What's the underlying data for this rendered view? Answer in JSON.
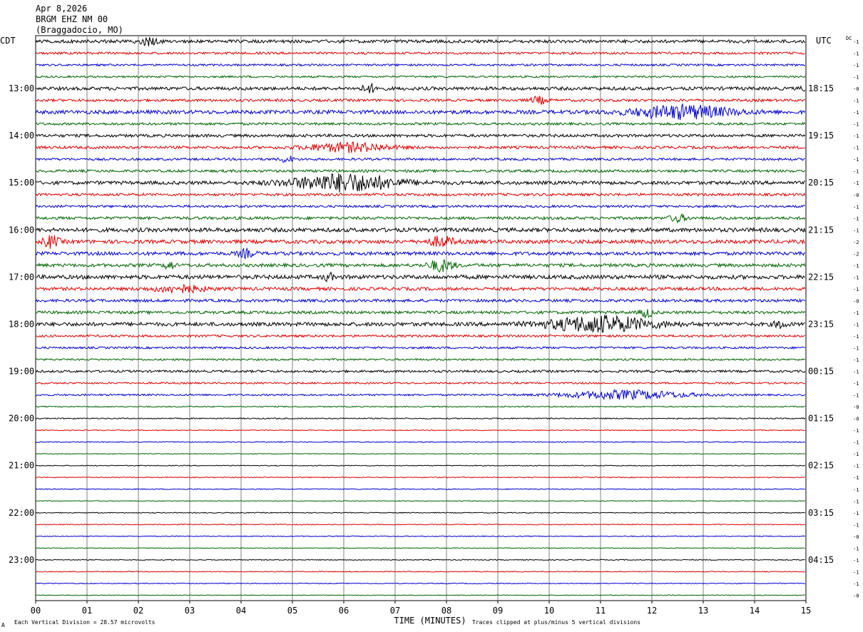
{
  "header": {
    "date": "Apr 8,2026",
    "station": "BRGM EHZ NM 00",
    "location": "(Braggadocio, MO)"
  },
  "labels": {
    "left_tz": "CDT",
    "right_tz": "UTC",
    "dc": "DC"
  },
  "footer": {
    "scale_note": "Each Vertical Division =   28.57 microvolts",
    "x_title": "TIME (MINUTES)",
    "clip_note": "Traces clipped at plus/minus 5 vertical divisions",
    "corner_mark": "A"
  },
  "colors": {
    "trace_cycle": [
      "#000000",
      "#e00000",
      "#0000d0",
      "#006400"
    ],
    "grid": "#808080",
    "frame": "#000000"
  },
  "chart_data": {
    "type": "line",
    "title": "BRGM EHZ NM 00",
    "xlabel": "TIME (MINUTES)",
    "ylabel": "",
    "xlim": [
      0,
      15
    ],
    "x_ticks": [
      "00",
      "01",
      "02",
      "03",
      "04",
      "05",
      "06",
      "07",
      "08",
      "09",
      "10",
      "11",
      "12",
      "13",
      "14",
      "15"
    ],
    "grid": true,
    "minutes_per_line": 15,
    "line_count": 48,
    "left_hour_labels": [
      {
        "line": 4,
        "text": "13:00"
      },
      {
        "line": 8,
        "text": "14:00"
      },
      {
        "line": 12,
        "text": "15:00"
      },
      {
        "line": 16,
        "text": "16:00"
      },
      {
        "line": 20,
        "text": "17:00"
      },
      {
        "line": 24,
        "text": "18:00"
      },
      {
        "line": 28,
        "text": "19:00"
      },
      {
        "line": 32,
        "text": "20:00"
      },
      {
        "line": 36,
        "text": "21:00"
      },
      {
        "line": 40,
        "text": "22:00"
      },
      {
        "line": 44,
        "text": "23:00"
      }
    ],
    "right_hour_labels": [
      {
        "line": 4,
        "text": "18:15"
      },
      {
        "line": 8,
        "text": "19:15"
      },
      {
        "line": 12,
        "text": "20:15"
      },
      {
        "line": 16,
        "text": "21:15"
      },
      {
        "line": 20,
        "text": "22:15"
      },
      {
        "line": 24,
        "text": "23:15"
      },
      {
        "line": 28,
        "text": "00:15"
      },
      {
        "line": 32,
        "text": "01:15"
      },
      {
        "line": 36,
        "text": "02:15"
      },
      {
        "line": 40,
        "text": "03:15"
      },
      {
        "line": 44,
        "text": "04:15"
      }
    ],
    "dc_offsets": [
      "-1",
      "-1",
      "-1",
      "-1",
      "-0",
      "-1",
      "-1",
      "-1",
      "-1",
      "-1",
      "-1",
      "-1",
      "-1",
      "-0",
      "-1",
      "-1",
      "-1",
      "-2",
      "-2",
      "-1",
      "-1",
      "-1",
      "-0",
      "-1",
      "-1",
      "-1",
      "-1",
      "-1",
      "-1",
      "-1",
      "-1",
      "-0",
      "-0",
      "-1",
      "-1",
      "-1",
      "-1",
      "-1",
      "-1",
      "-1",
      "-1",
      "-1",
      "-0",
      "-1",
      "-1",
      "-1",
      "-1",
      "-0"
    ],
    "noise_levels": [
      2.2,
      1.6,
      1.4,
      1.3,
      2.3,
      1.8,
      2.6,
      1.7,
      2.0,
      1.9,
      1.6,
      1.8,
      2.4,
      1.8,
      1.6,
      2.0,
      2.8,
      2.6,
      2.4,
      2.3,
      2.8,
      2.2,
      2.0,
      2.0,
      2.6,
      1.6,
      1.4,
      1.3,
      1.6,
      1.2,
      1.2,
      0.8,
      0.8,
      0.6,
      0.6,
      0.5,
      0.6,
      0.6,
      0.6,
      0.5,
      0.6,
      0.6,
      0.6,
      0.5,
      0.6,
      0.6,
      0.6,
      0.5
    ],
    "bursts": [
      {
        "line": 0,
        "minute": 2.2,
        "width": 0.25,
        "amp": 5
      },
      {
        "line": 4,
        "minute": 6.5,
        "width": 0.2,
        "amp": 5
      },
      {
        "line": 4,
        "minute": 15.0,
        "width": 0.1,
        "amp": 6
      },
      {
        "line": 5,
        "minute": 9.8,
        "width": 0.2,
        "amp": 5
      },
      {
        "line": 6,
        "minute": 12.6,
        "width": 1.2,
        "amp": 9
      },
      {
        "line": 10,
        "minute": 4.9,
        "width": 0.15,
        "amp": 5
      },
      {
        "line": 9,
        "minute": 6.1,
        "width": 1.0,
        "amp": 6
      },
      {
        "line": 12,
        "minute": 6.0,
        "width": 1.3,
        "amp": 12
      },
      {
        "line": 15,
        "minute": 12.5,
        "width": 0.2,
        "amp": 5
      },
      {
        "line": 17,
        "minute": 0.3,
        "width": 0.2,
        "amp": 8
      },
      {
        "line": 17,
        "minute": 7.9,
        "width": 0.3,
        "amp": 7
      },
      {
        "line": 18,
        "minute": 4.1,
        "width": 0.2,
        "amp": 5
      },
      {
        "line": 19,
        "minute": 2.6,
        "width": 0.1,
        "amp": 8
      },
      {
        "line": 19,
        "minute": 7.9,
        "width": 0.3,
        "amp": 8
      },
      {
        "line": 20,
        "minute": 5.7,
        "width": 0.1,
        "amp": 6
      },
      {
        "line": 21,
        "minute": 2.8,
        "width": 0.6,
        "amp": 5
      },
      {
        "line": 23,
        "minute": 11.9,
        "width": 0.15,
        "amp": 7
      },
      {
        "line": 24,
        "minute": 11.0,
        "width": 1.3,
        "amp": 11
      },
      {
        "line": 24,
        "minute": 14.5,
        "width": 0.15,
        "amp": 5
      },
      {
        "line": 30,
        "minute": 11.5,
        "width": 1.5,
        "amp": 6
      }
    ]
  }
}
